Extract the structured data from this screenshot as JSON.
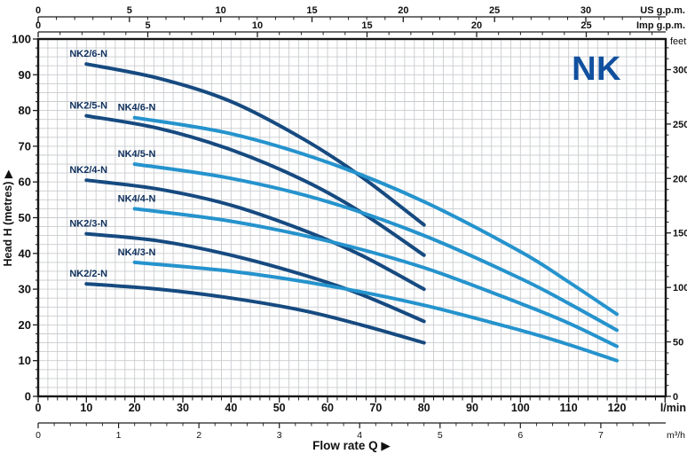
{
  "logo": {
    "text": "NK",
    "color": "#11509f"
  },
  "colors": {
    "background": "#ffffff",
    "dark_curve": "#164a80",
    "light_curve": "#2593cd",
    "grid": "#c9cccf",
    "axis_line": "#1c1c1c",
    "tick_label": "#111111",
    "curve_label": "#0e2f5c",
    "border": "#161616"
  },
  "labels": {
    "x_title": "Flow rate Q",
    "y_title": "Head H  (metres)",
    "arrow": "▶",
    "feet_unit": "feet",
    "lmin_unit": "l/min",
    "m3h_unit": "m³/h",
    "us_unit": "US g.p.m.",
    "imp_unit": "Imp g.p.m."
  },
  "chart_data": {
    "type": "line",
    "xlabel": "Flow rate Q",
    "ylabel": "Head H (metres)",
    "x_axis_units": [
      "US g.p.m.",
      "Imp g.p.m.",
      "l/min",
      "m³/h"
    ],
    "y_axis_units": [
      "metres",
      "feet"
    ],
    "xlim_lmin": [
      0,
      130
    ],
    "ylim_m": [
      0,
      100
    ],
    "x_ticks_lmin": {
      "label_step": 10,
      "minor_step": 2,
      "max_labeled": 120
    },
    "y_ticks_m": {
      "label_step": 10,
      "minor_step": 2.5
    },
    "top_axes": [
      {
        "unit": "US g.p.m.",
        "lmin_per_unit": 3.7854,
        "label_step": 5,
        "minor_step": 1,
        "max_labeled": 30
      },
      {
        "unit": "Imp g.p.m.",
        "lmin_per_unit": 4.5461,
        "label_step": 5,
        "minor_step": 1,
        "max_labeled": 25
      }
    ],
    "bottom_axis": {
      "unit": "m³/h",
      "lmin_per_unit": 16.6667,
      "label_step": 1,
      "minor_step": 0.2,
      "max_labeled": 7
    },
    "right_axis": {
      "unit": "feet",
      "m_per_unit": 0.3048,
      "label_step": 50,
      "minor_step": 10,
      "max_labeled": 300
    },
    "legend_position": "inline-curve-labels",
    "grid": true,
    "series": [
      {
        "name": "NK2/6-N",
        "family": "NK2",
        "color": "dark_curve",
        "points_lmin_m": [
          [
            10,
            93
          ],
          [
            25,
            89
          ],
          [
            40,
            82.5
          ],
          [
            55,
            72
          ],
          [
            67,
            61.5
          ],
          [
            80,
            48
          ]
        ]
      },
      {
        "name": "NK2/5-N",
        "family": "NK2",
        "color": "dark_curve",
        "points_lmin_m": [
          [
            10,
            78.5
          ],
          [
            25,
            75
          ],
          [
            40,
            69
          ],
          [
            55,
            60.5
          ],
          [
            67,
            51.5
          ],
          [
            80,
            39.5
          ]
        ]
      },
      {
        "name": "NK2/4-N",
        "family": "NK2",
        "color": "dark_curve",
        "points_lmin_m": [
          [
            10,
            60.5
          ],
          [
            25,
            58
          ],
          [
            40,
            53.5
          ],
          [
            55,
            46.5
          ],
          [
            67,
            39.5
          ],
          [
            80,
            30
          ]
        ]
      },
      {
        "name": "NK2/3-N",
        "family": "NK2",
        "color": "dark_curve",
        "points_lmin_m": [
          [
            10,
            45.5
          ],
          [
            25,
            43.5
          ],
          [
            40,
            39.5
          ],
          [
            55,
            34
          ],
          [
            67,
            28.5
          ],
          [
            80,
            21
          ]
        ]
      },
      {
        "name": "NK2/2-N",
        "family": "NK2",
        "color": "dark_curve",
        "points_lmin_m": [
          [
            10,
            31.5
          ],
          [
            25,
            30
          ],
          [
            40,
            27.5
          ],
          [
            55,
            24
          ],
          [
            67,
            20
          ],
          [
            80,
            15
          ]
        ]
      },
      {
        "name": "NK4/6-N",
        "family": "NK4",
        "color": "light_curve",
        "points_lmin_m": [
          [
            20,
            78
          ],
          [
            40,
            73.5
          ],
          [
            60,
            65.5
          ],
          [
            80,
            54.5
          ],
          [
            100,
            40.5
          ],
          [
            110,
            32
          ],
          [
            120,
            23
          ]
        ]
      },
      {
        "name": "NK4/5-N",
        "family": "NK4",
        "color": "light_curve",
        "points_lmin_m": [
          [
            20,
            65
          ],
          [
            40,
            61
          ],
          [
            60,
            54.5
          ],
          [
            80,
            45
          ],
          [
            100,
            33
          ],
          [
            110,
            26
          ],
          [
            120,
            18.5
          ]
        ]
      },
      {
        "name": "NK4/4-N",
        "family": "NK4",
        "color": "light_curve",
        "points_lmin_m": [
          [
            20,
            52.5
          ],
          [
            40,
            49
          ],
          [
            60,
            43.5
          ],
          [
            80,
            36
          ],
          [
            100,
            26
          ],
          [
            110,
            20.5
          ],
          [
            120,
            14
          ]
        ]
      },
      {
        "name": "NK4/3-N",
        "family": "NK4",
        "color": "light_curve",
        "points_lmin_m": [
          [
            20,
            37.5
          ],
          [
            40,
            35
          ],
          [
            60,
            31
          ],
          [
            80,
            25.5
          ],
          [
            100,
            18.5
          ],
          [
            110,
            14.5
          ],
          [
            120,
            10
          ]
        ]
      }
    ]
  }
}
